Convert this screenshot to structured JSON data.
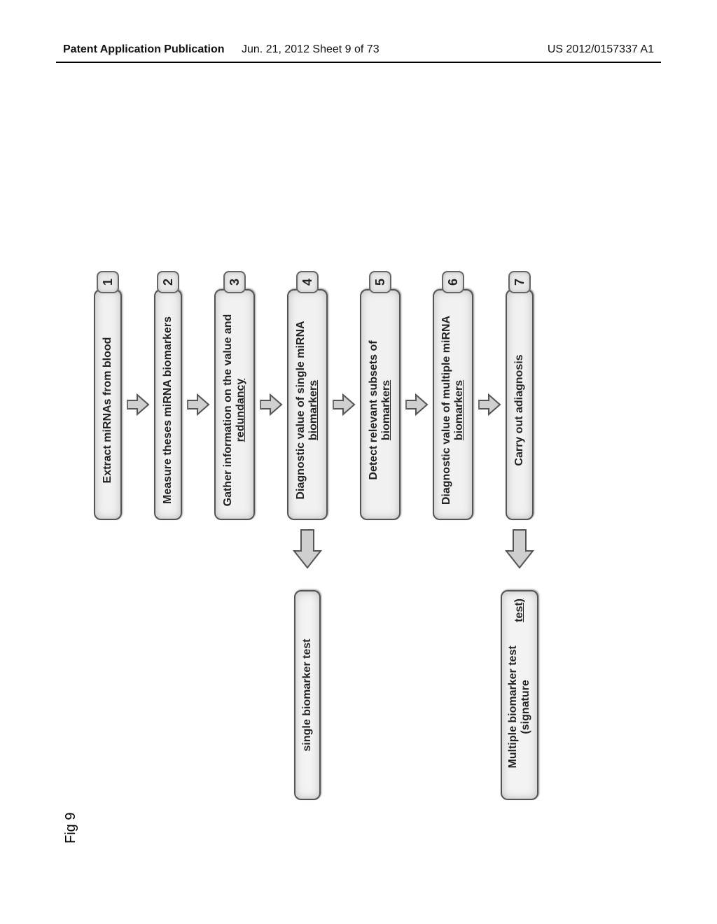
{
  "header": {
    "left": "Patent Application Publication",
    "center": "Jun. 21, 2012  Sheet 9 of 73",
    "right": "US 2012/0157337 A1"
  },
  "figure": {
    "label": "Fig 9",
    "flow_box_fill": "#f1f1f1",
    "flow_box_border": "#555555",
    "badge_fill": "#e9e9e9",
    "arrow_fill": "#cfcfcf",
    "arrow_stroke": "#555555",
    "steps": [
      {
        "num": "1",
        "lines": [
          "Extract miRNAs from blood"
        ],
        "h": 1
      },
      {
        "num": "2",
        "lines": [
          "Measure theses miRNA biomarkers"
        ],
        "h": 1
      },
      {
        "num": "3",
        "lines": [
          "Gather information on the value and",
          "redundancy"
        ],
        "h": 2,
        "underline_last": true
      },
      {
        "num": "4",
        "lines": [
          "Diagnostic value of single miRNA",
          "biomarkers"
        ],
        "h": 2,
        "underline_last": true
      },
      {
        "num": "5",
        "lines": [
          "Detect relevant subsets of",
          "biomarkers"
        ],
        "h": 2,
        "underline_last": true
      },
      {
        "num": "6",
        "lines": [
          "Diagnostic value of multiple miRNA",
          "biomarkers"
        ],
        "h": 2,
        "underline_last": true
      },
      {
        "num": "7",
        "lines": [
          "Carry out adiagnosis"
        ],
        "h": 1
      }
    ],
    "branches": [
      {
        "from_step": 4,
        "lines": [
          "single biomarker test"
        ],
        "h": 1
      },
      {
        "from_step": 7,
        "lines": [
          "Multiple biomarker test (signature",
          "test)"
        ],
        "h": 2,
        "underline_last": true
      }
    ]
  }
}
